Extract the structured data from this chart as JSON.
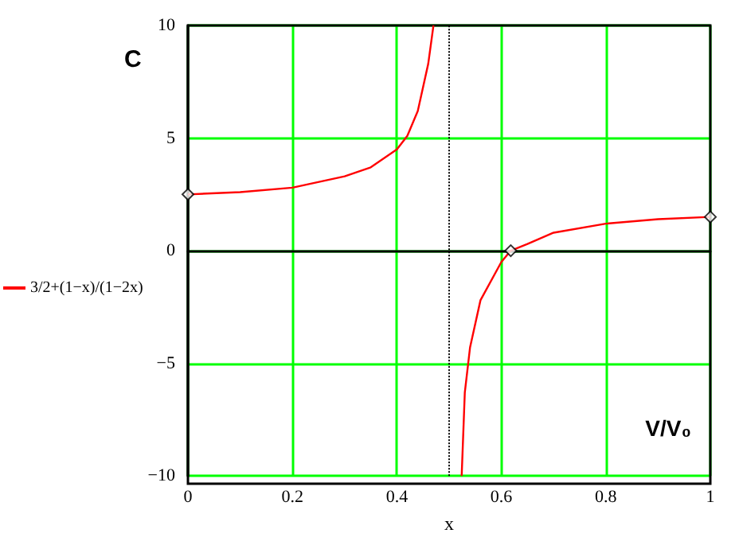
{
  "chart_data": {
    "type": "line",
    "xlabel": "x",
    "annotations": [
      "C",
      "V/V₀"
    ],
    "xlim": [
      0,
      1
    ],
    "xticks": [
      0,
      0.2,
      0.4,
      0.6,
      0.8,
      1
    ],
    "ylim": [
      -10,
      10
    ],
    "yticks": [
      -10,
      -5,
      0,
      5,
      10
    ],
    "grid": true,
    "legend": "left",
    "series": [
      {
        "name": "3/2+(1−x)/(1−2x)",
        "color": "#ff0000",
        "marker": "none",
        "x": [
          0,
          0.1,
          0.2,
          0.3,
          0.35,
          0.4,
          0.42,
          0.44,
          0.46,
          0.47,
          0.5,
          0.524,
          0.53,
          0.54,
          0.56,
          0.6,
          0.618,
          0.65,
          0.7,
          0.8,
          0.9,
          1
        ],
        "values": [
          2.5,
          2.6,
          2.8,
          3.3,
          3.7,
          4.5,
          5.1,
          6.2,
          8.3,
          10,
          null,
          -10,
          -6.3,
          -4.3,
          -2.2,
          -0.5,
          0,
          0.3,
          0.8,
          1.2,
          1.4,
          1.5
        ]
      },
      {
        "type": "scatter",
        "color": "#000000",
        "marker": "diamond",
        "x": [
          0,
          0.618,
          1
        ],
        "values": [
          2.5,
          0,
          1.5
        ]
      }
    ],
    "ref_lines": [
      {
        "axis": "x",
        "value": 0.5,
        "color": "#000000",
        "line_style": "dotted"
      }
    ]
  }
}
